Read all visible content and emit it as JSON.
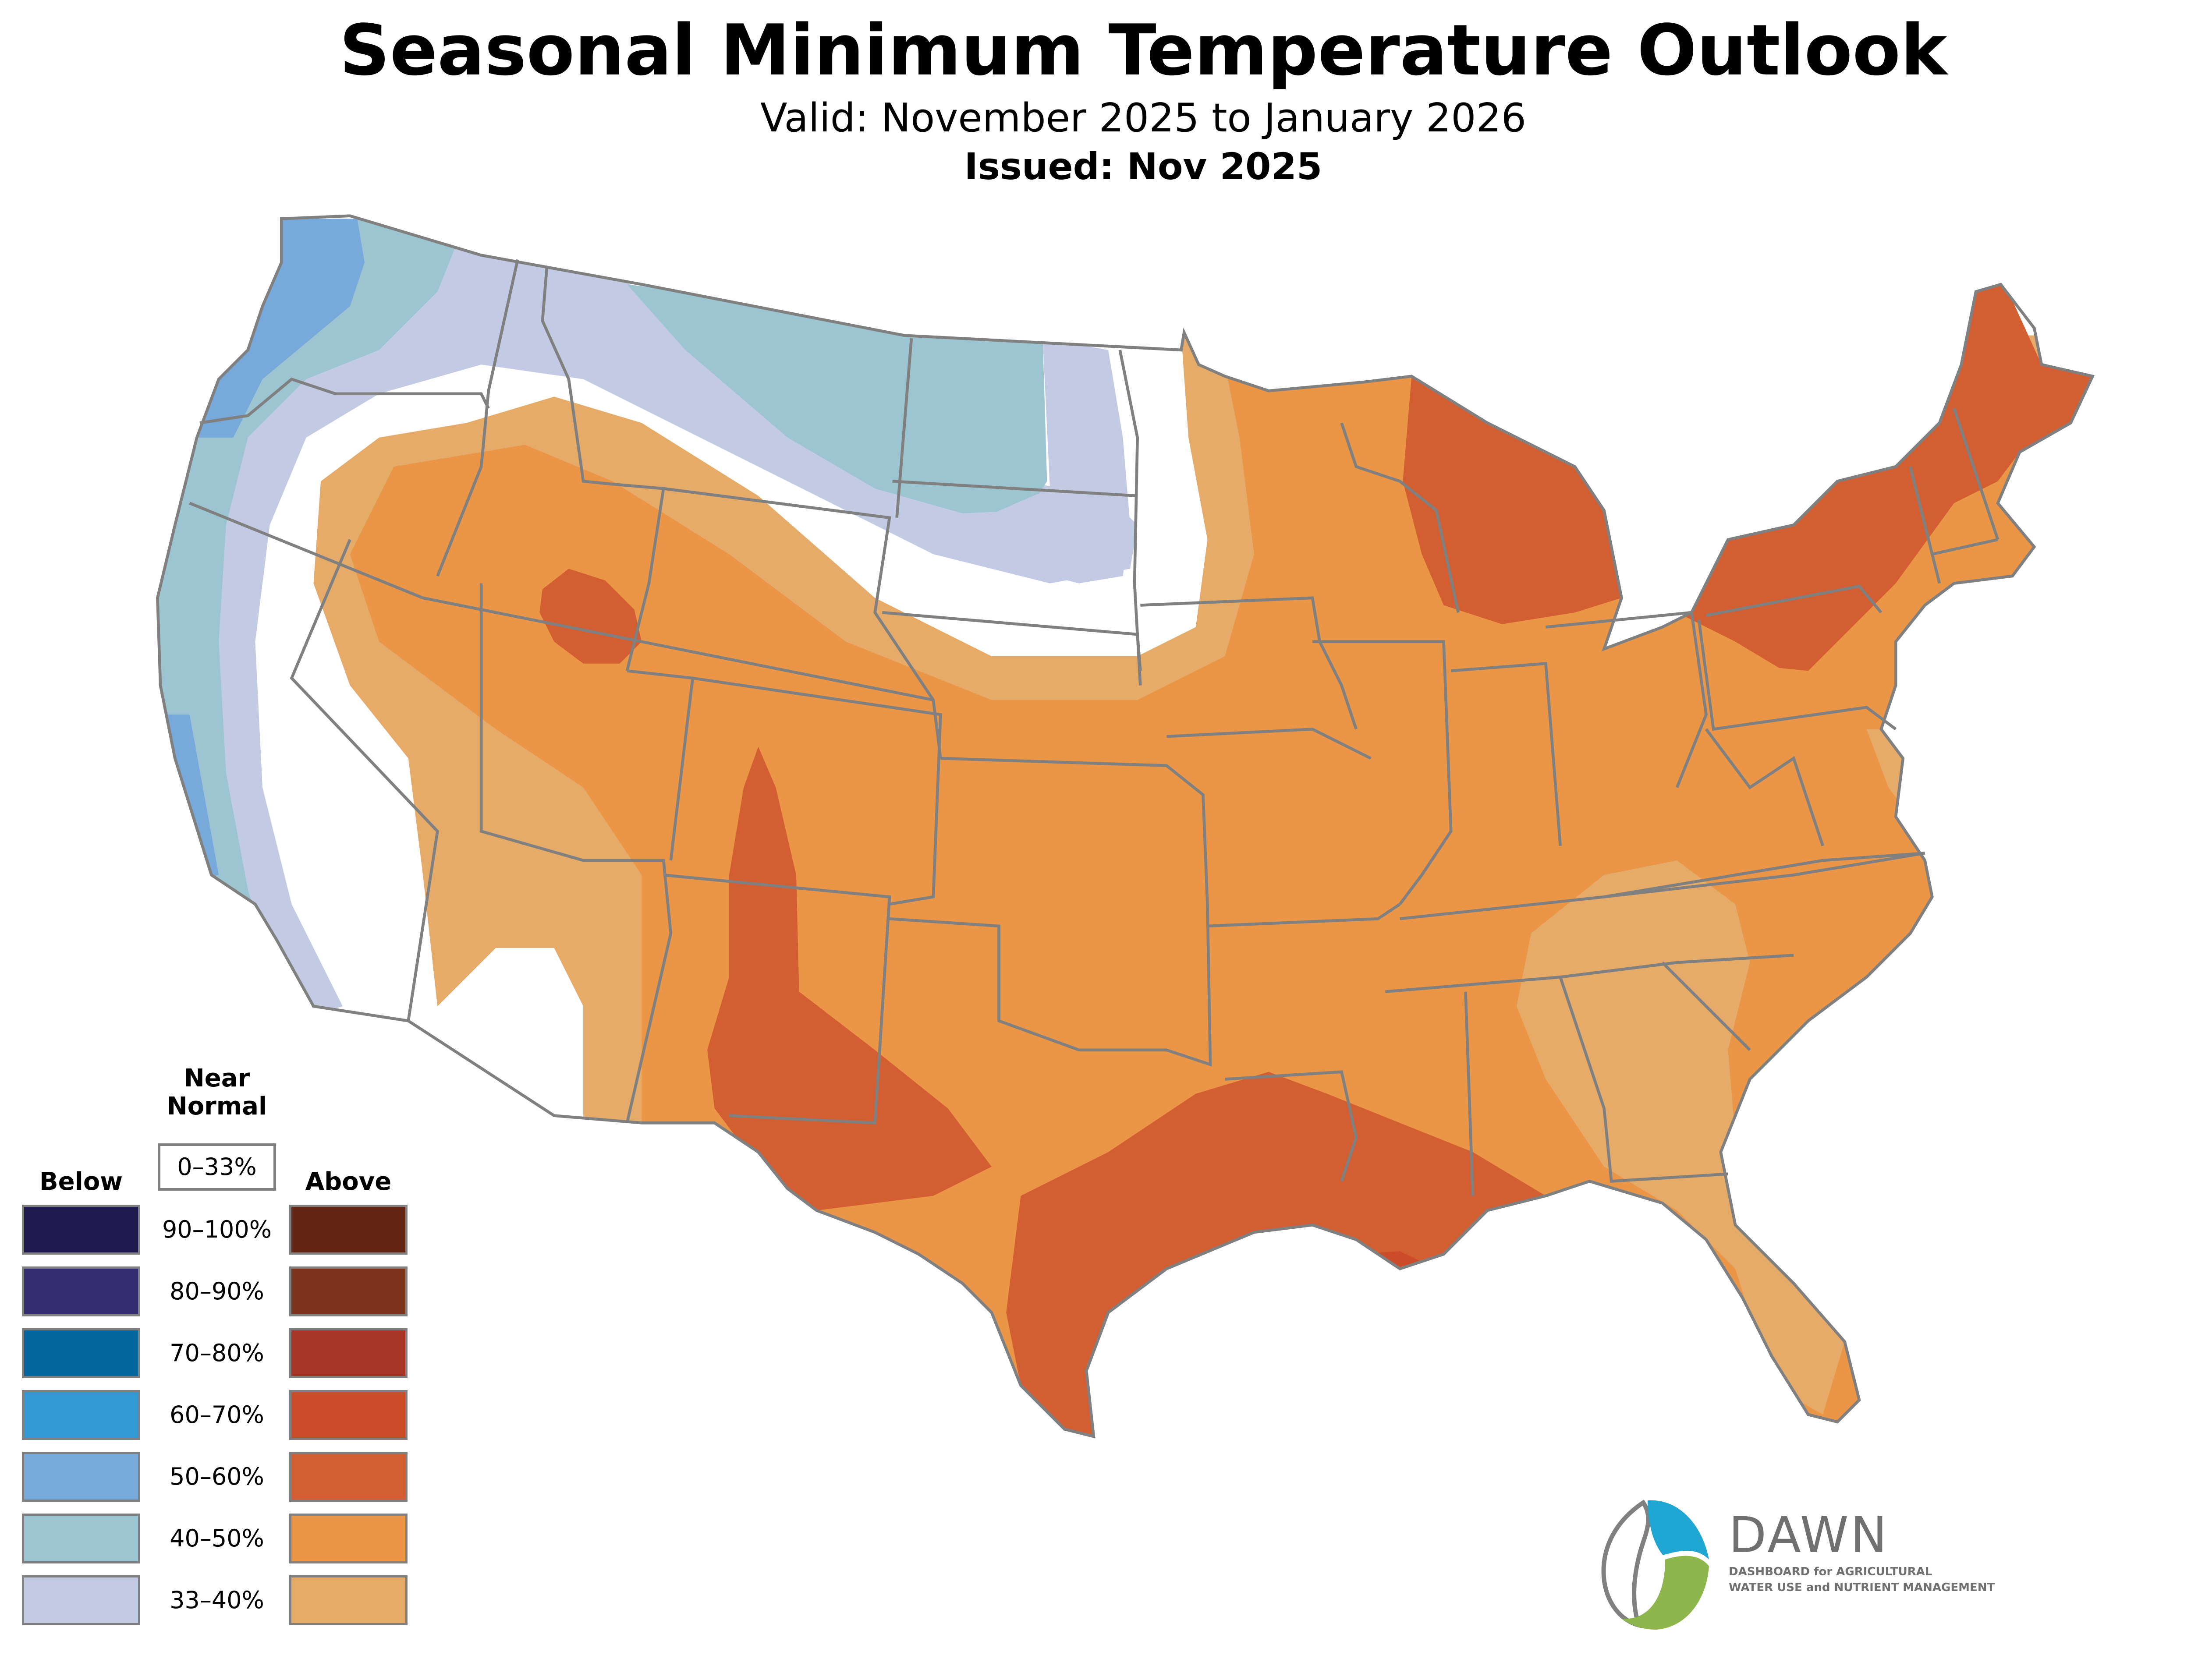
{
  "header": {
    "title": "Seasonal Minimum Temperature Outlook",
    "valid": "Valid: November 2025 to January 2026",
    "issued": "Issued: Nov 2025"
  },
  "legend": {
    "below_label": "Below",
    "near_normal_line1": "Near",
    "near_normal_line2": "Normal",
    "near_normal_range": "0–33%",
    "above_label": "Above",
    "rows": [
      {
        "range": "90–100%",
        "below_color": "#1f1a4f",
        "above_color": "#632411"
      },
      {
        "range": "80–90%",
        "below_color": "#342d72",
        "above_color": "#7c331d"
      },
      {
        "range": "70–80%",
        "below_color": "#02679c",
        "above_color": "#a53524"
      },
      {
        "range": "60–70%",
        "below_color": "#3399d4",
        "above_color": "#cc4b28"
      },
      {
        "range": "50–60%",
        "below_color": "#77aadb",
        "above_color": "#d25e32"
      },
      {
        "range": "40–50%",
        "below_color": "#9dc5d1",
        "above_color": "#eb9647"
      },
      {
        "range": "33–40%",
        "below_color": "#c3cbe4",
        "above_color": "#e6ab69"
      }
    ]
  },
  "map": {
    "border_color": "#808080",
    "colors": {
      "below_50_60": "#77aadb",
      "below_40_50": "#9dc5d1",
      "below_33_40": "#c3cbe4",
      "above_33_40": "#e6ab69",
      "above_40_50": "#eb9647",
      "above_50_60": "#d25e32",
      "above_60_70": "#cc4b28"
    }
  },
  "logo": {
    "name": "DAWN",
    "tagline_line1": "DASHBOARD for AGRICULTURAL",
    "tagline_line2": "WATER USE and NUTRIENT MANAGEMENT",
    "blue": "#1fa6d3",
    "green": "#8db64c",
    "gray": "#707070"
  }
}
